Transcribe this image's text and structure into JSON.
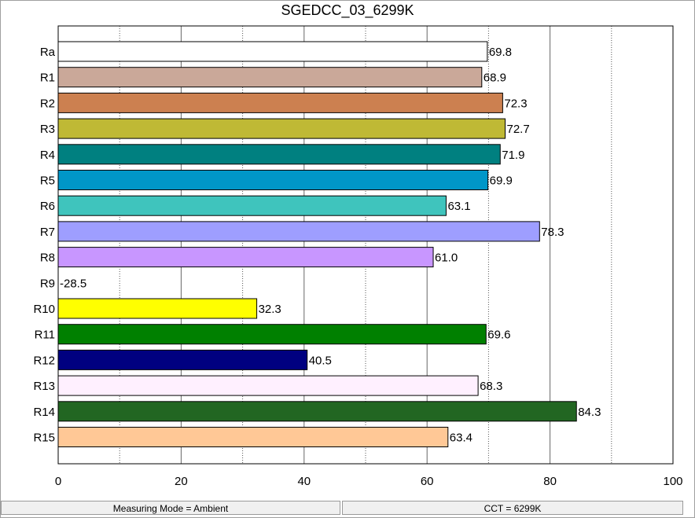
{
  "chart_data": {
    "type": "bar",
    "orientation": "horizontal",
    "title": "SGEDCC_03_6299K",
    "categories": [
      "Ra",
      "R1",
      "R2",
      "R3",
      "R4",
      "R5",
      "R6",
      "R7",
      "R8",
      "R9",
      "R10",
      "R11",
      "R12",
      "R13",
      "R14",
      "R15"
    ],
    "values": [
      69.8,
      68.9,
      72.3,
      72.7,
      71.9,
      69.9,
      63.1,
      78.3,
      61.0,
      -28.5,
      32.3,
      69.6,
      40.5,
      68.3,
      84.3,
      63.4
    ],
    "value_labels": [
      "69.8",
      "68.9",
      "72.3",
      "72.7",
      "71.9",
      "69.9",
      "63.1",
      "78.3",
      "61.0",
      "-28.5",
      "32.3",
      "69.6",
      "40.5",
      "68.3",
      "84.3",
      "63.4"
    ],
    "colors": [
      "#ffffff",
      "#caa899",
      "#cc8050",
      "#bfb935",
      "#008080",
      "#0096c8",
      "#3fc4bd",
      "#9e9eff",
      "#c896ff",
      "#ffffff",
      "#ffff00",
      "#008000",
      "#000080",
      "#fff0ff",
      "#226622",
      "#ffc896"
    ],
    "xlim": [
      0,
      100
    ],
    "xticks": [
      0,
      20,
      40,
      60,
      80,
      100
    ],
    "xtick_labels": [
      "0",
      "20",
      "40",
      "60",
      "80",
      "100"
    ],
    "grid": "vertical, solid at 20 units, dotted at 10 units",
    "legend": "none"
  },
  "status_bar": {
    "measuring_mode": "Measuring Mode = Ambient",
    "cct": "CCT = 6299K"
  }
}
